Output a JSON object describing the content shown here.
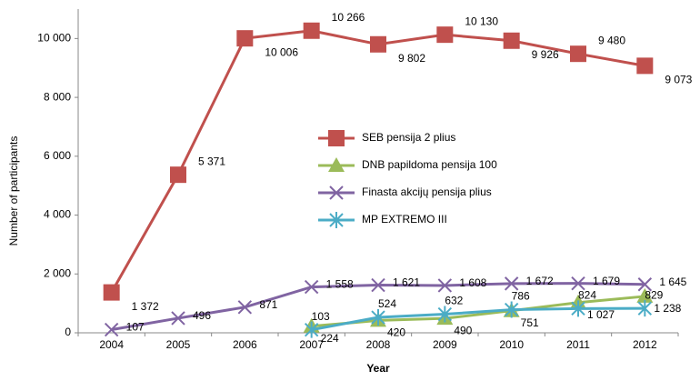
{
  "chart_data": {
    "type": "line",
    "x_label": "Year",
    "y_label": "Number of participants",
    "categories": [
      "2004",
      "2005",
      "2006",
      "2007",
      "2008",
      "2009",
      "2010",
      "2011",
      "2012"
    ],
    "ylim": [
      0,
      11000
    ],
    "yticks": [
      0,
      {
        "value": 2000,
        "label": "2 000"
      },
      {
        "value": 4000,
        "label": "4 000"
      },
      {
        "value": 6000,
        "label": "6 000"
      },
      {
        "value": 8000,
        "label": "8 000"
      },
      {
        "value": 10000,
        "label": "10 000"
      }
    ],
    "legend": "inside",
    "series": [
      {
        "name": "SEB pensija 2 plius",
        "color": "#c0504d",
        "marker": "square",
        "values": [
          1372,
          5371,
          10006,
          10266,
          9802,
          10130,
          9926,
          9480,
          9073
        ],
        "value_labels": [
          "1 372",
          "5 371",
          "10 006",
          "10 266",
          "9 802",
          "10 130",
          "9 926",
          "9 480",
          "9 073"
        ]
      },
      {
        "name": "DNB papildoma pensija 100",
        "color": "#9bbb59",
        "marker": "triangle",
        "values": [
          null,
          null,
          null,
          224,
          420,
          490,
          751,
          1027,
          1238
        ],
        "value_labels": [
          null,
          null,
          null,
          "224",
          "420",
          "490",
          "751",
          "1 027",
          "1 238"
        ]
      },
      {
        "name": "Finasta akcijų pensija plius",
        "color": "#8064a2",
        "marker": "x",
        "values": [
          107,
          496,
          871,
          1558,
          1621,
          1608,
          1672,
          1679,
          1645
        ],
        "value_labels": [
          "107",
          "496",
          "871",
          "1 558",
          "1 621",
          "1 608",
          "1 672",
          "1 679",
          "1 645"
        ]
      },
      {
        "name": "MP EXTREMO III",
        "color": "#4bacc6",
        "marker": "star",
        "values": [
          null,
          null,
          null,
          103,
          524,
          632,
          786,
          824,
          829
        ],
        "value_labels": [
          null,
          null,
          null,
          "103",
          "524",
          "632",
          "786",
          "824",
          "829"
        ]
      }
    ]
  }
}
